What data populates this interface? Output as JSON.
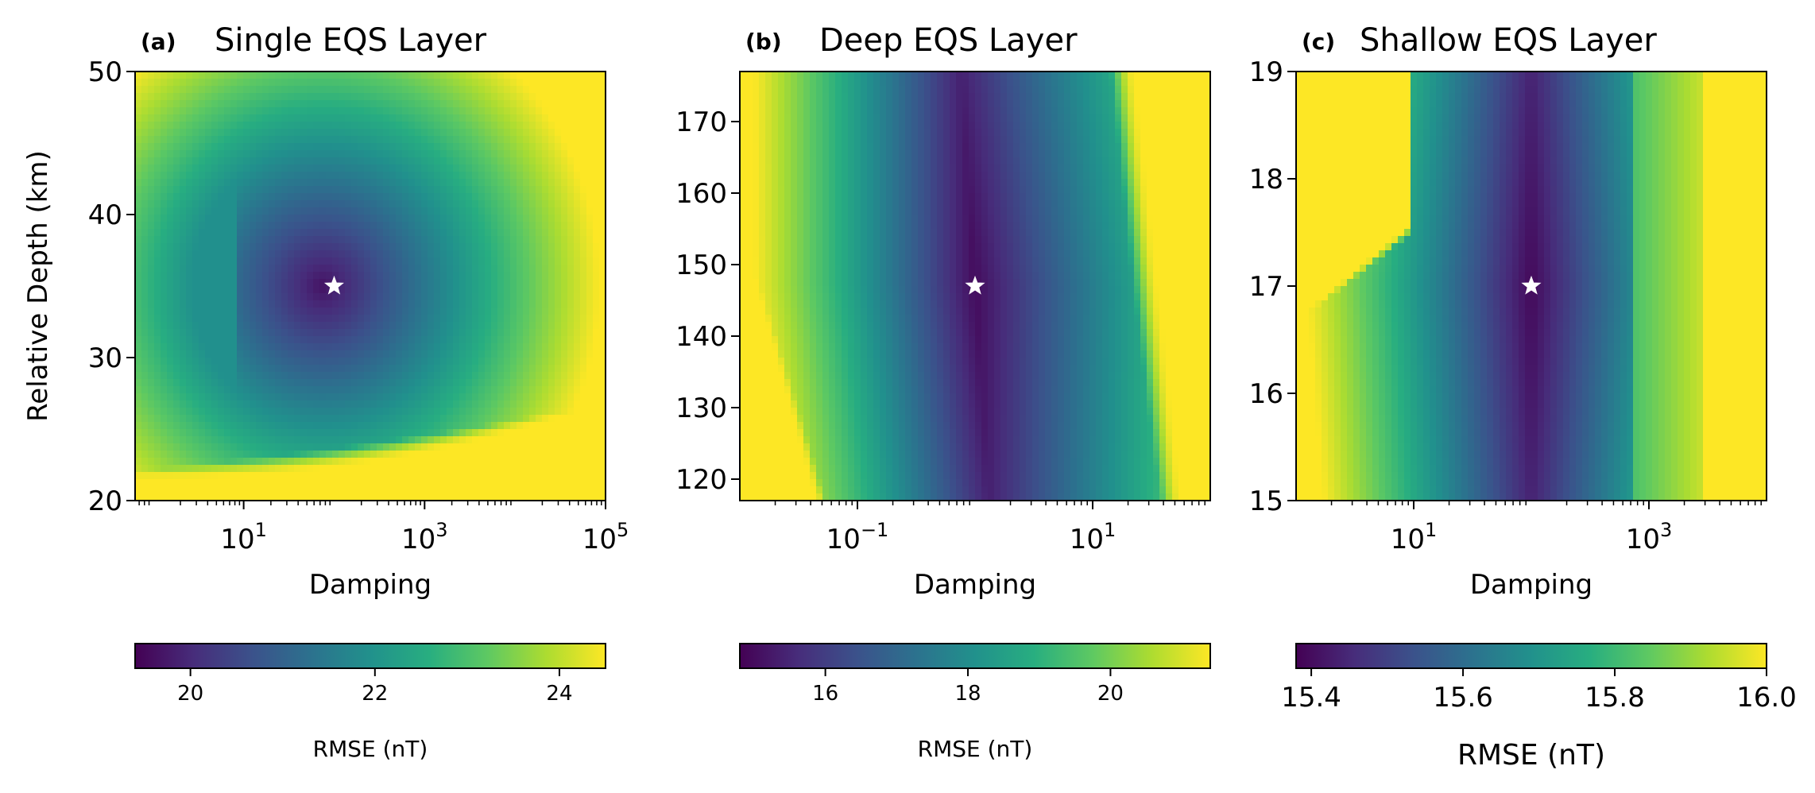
{
  "chart_data": [
    {
      "type": "heatmap",
      "panel_label": "(a)",
      "title": "Single EQS Layer",
      "xlabel": "Damping",
      "ylabel": "Relative Depth (km)",
      "x_scale": "log",
      "xlim_log10": [
        -0.2,
        5.0
      ],
      "ylim": [
        20,
        50
      ],
      "x_ticks": [
        {
          "log10": 1,
          "base": "10",
          "exp": "1"
        },
        {
          "log10": 3,
          "base": "10",
          "exp": "3"
        },
        {
          "log10": 5,
          "base": "10",
          "exp": "5"
        }
      ],
      "y_ticks": [
        20,
        30,
        40,
        50
      ],
      "best_fit": {
        "damping_log10": 2.0,
        "depth": 35
      },
      "colorbar": {
        "label": "RMSE (nT)",
        "range": [
          19.4,
          24.5
        ],
        "ticks": [
          20,
          22,
          24
        ]
      }
    },
    {
      "type": "heatmap",
      "panel_label": "(b)",
      "title": "Deep EQS Layer",
      "xlabel": "Damping",
      "ylabel": "",
      "x_scale": "log",
      "xlim_log10": [
        -2.0,
        2.0
      ],
      "ylim": [
        117,
        177
      ],
      "x_ticks": [
        {
          "log10": -1,
          "base": "10",
          "exp": "−1"
        },
        {
          "log10": 1,
          "base": "10",
          "exp": "1"
        }
      ],
      "y_ticks": [
        120,
        130,
        140,
        150,
        160,
        170
      ],
      "best_fit": {
        "damping_log10": 0.0,
        "depth": 147
      },
      "colorbar": {
        "label": "RMSE (nT)",
        "range": [
          14.8,
          21.4
        ],
        "ticks": [
          16,
          18,
          20
        ]
      }
    },
    {
      "type": "heatmap",
      "panel_label": "(c)",
      "title": "Shallow EQS Layer",
      "xlabel": "Damping",
      "ylabel": "",
      "x_scale": "log",
      "xlim_log10": [
        0.0,
        4.0
      ],
      "ylim": [
        15,
        19
      ],
      "x_ticks": [
        {
          "log10": 1,
          "base": "10",
          "exp": "1"
        },
        {
          "log10": 3,
          "base": "10",
          "exp": "3"
        }
      ],
      "y_ticks": [
        15,
        16,
        17,
        18,
        19
      ],
      "best_fit": {
        "damping_log10": 2.0,
        "depth": 17
      },
      "colorbar": {
        "label": "RMSE (nT)",
        "range": [
          15.38,
          16.0
        ],
        "ticks": [
          15.4,
          15.6,
          15.8,
          16.0
        ]
      }
    }
  ]
}
